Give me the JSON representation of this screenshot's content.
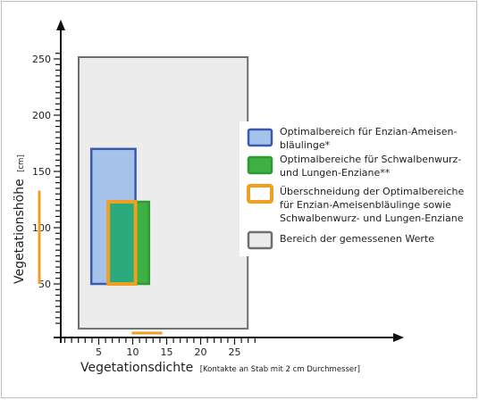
{
  "chart_data": {
    "type": "area",
    "xlabel": "Vegetationsdichte",
    "xlabel_unit": "[Kontakte an Stab mit 2 cm Durchmesser]",
    "ylabel": "Vegetationshöhe",
    "ylabel_unit": "[cm]",
    "xlim": [
      -2,
      30
    ],
    "ylim": [
      10,
      265
    ],
    "x_ticks": [
      5,
      10,
      15,
      20,
      25
    ],
    "y_ticks": [
      50,
      100,
      150,
      200,
      250
    ],
    "x_minor_step": 1,
    "y_minor_step": 5,
    "measured_range": {
      "x": [
        0,
        27
      ],
      "y": [
        15,
        250
      ]
    },
    "regions": [
      {
        "id": "enzian-ameisenblaeuling",
        "x": [
          4.5,
          11
        ],
        "y": [
          50,
          170
        ],
        "fill": "#a4c2ea",
        "stroke": "#3a5ab0"
      },
      {
        "id": "schwalbenwurz-lungen-enziane",
        "x": [
          7,
          13
        ],
        "y": [
          50,
          123
        ],
        "fill": "#3fb043",
        "stroke": "#2f9a33"
      },
      {
        "id": "ueberschneidung",
        "x": [
          7,
          11
        ],
        "y": [
          50,
          123
        ],
        "fill": "#2bab7d",
        "stroke": "#f0a020"
      }
    ],
    "axis_markers": [
      {
        "axis": "x",
        "range": [
          6.5,
          11
        ],
        "color": "#f0a020"
      },
      {
        "axis": "y",
        "range": [
          50,
          125
        ],
        "color": "#f0a020"
      }
    ],
    "legend": [
      {
        "label": "Optimalbereich für Enzian-Ameisen-\nbläulinge*",
        "fill": "#a4c2ea",
        "stroke": "#3a5ab0"
      },
      {
        "label": "Optimalbereiche für Schwalbenwurz-\nund Lungen-Enziane**",
        "fill": "#3fb043",
        "stroke": "#2f9a33"
      },
      {
        "label": "Überschneidung der Optimalbereiche\nfür Enzian-Ameisenbläulinge sowie\nSchwalbenwurz- und Lungen-Enziane",
        "fill": "#ffffff",
        "stroke": "#f0a020"
      },
      {
        "label": "Bereich der gemessenen Werte",
        "fill": "#ececec",
        "stroke": "#6f6f6f"
      }
    ],
    "legend_position": "right",
    "grid": false
  }
}
